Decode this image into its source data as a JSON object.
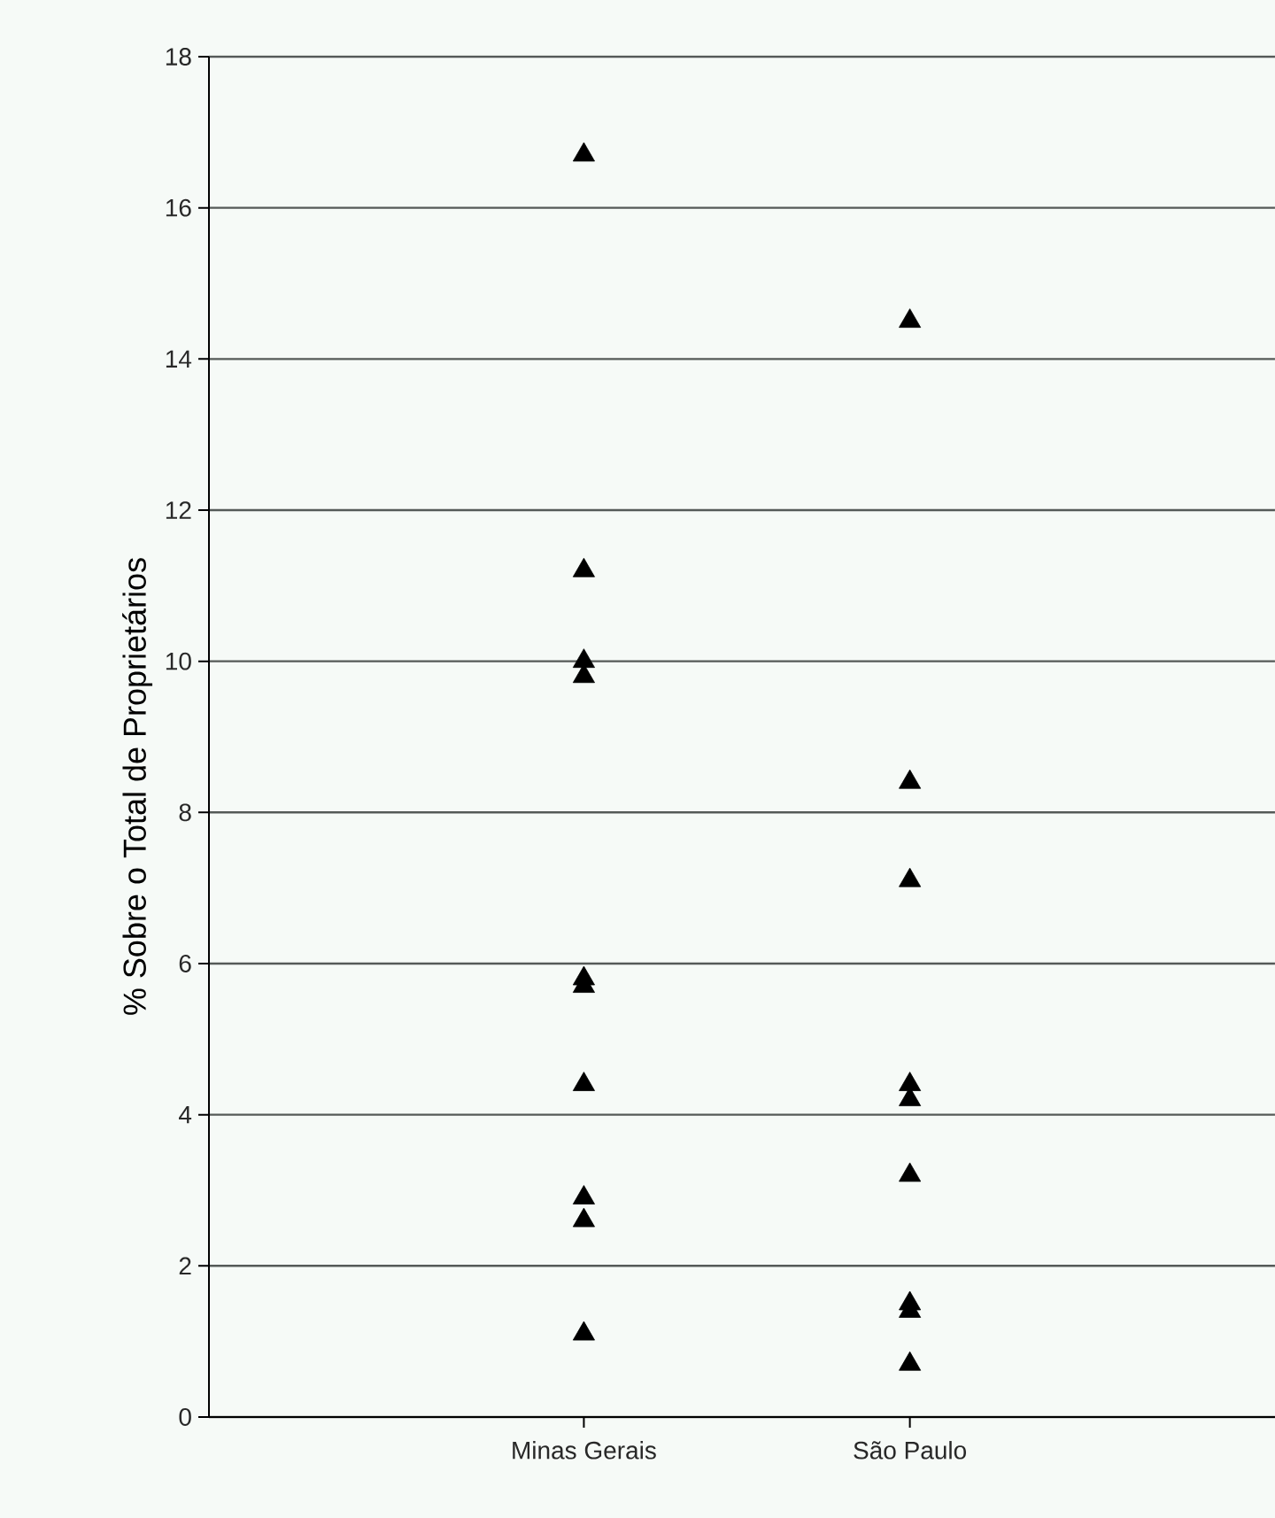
{
  "chart_data": {
    "type": "scatter",
    "ylabel": "% Sobre o Total de Proprietários",
    "categories": [
      "Minas Gerais",
      "São Paulo"
    ],
    "ylim": [
      0,
      18
    ],
    "yticks": [
      0,
      2,
      4,
      6,
      8,
      10,
      12,
      14,
      16,
      18
    ],
    "grid": "y",
    "marker": "triangle",
    "series": [
      {
        "color": "#000000",
        "x": [
          "Minas Gerais",
          "Minas Gerais",
          "Minas Gerais",
          "Minas Gerais",
          "Minas Gerais",
          "Minas Gerais",
          "Minas Gerais",
          "Minas Gerais",
          "Minas Gerais",
          "Minas Gerais",
          "São Paulo",
          "São Paulo",
          "São Paulo",
          "São Paulo",
          "São Paulo",
          "São Paulo",
          "São Paulo",
          "São Paulo",
          "São Paulo"
        ],
        "values": [
          16.7,
          11.2,
          10.0,
          9.8,
          5.8,
          5.7,
          4.4,
          2.9,
          2.6,
          1.1,
          14.5,
          8.4,
          7.1,
          4.4,
          4.2,
          3.2,
          1.5,
          1.4,
          0.7
        ]
      }
    ]
  }
}
